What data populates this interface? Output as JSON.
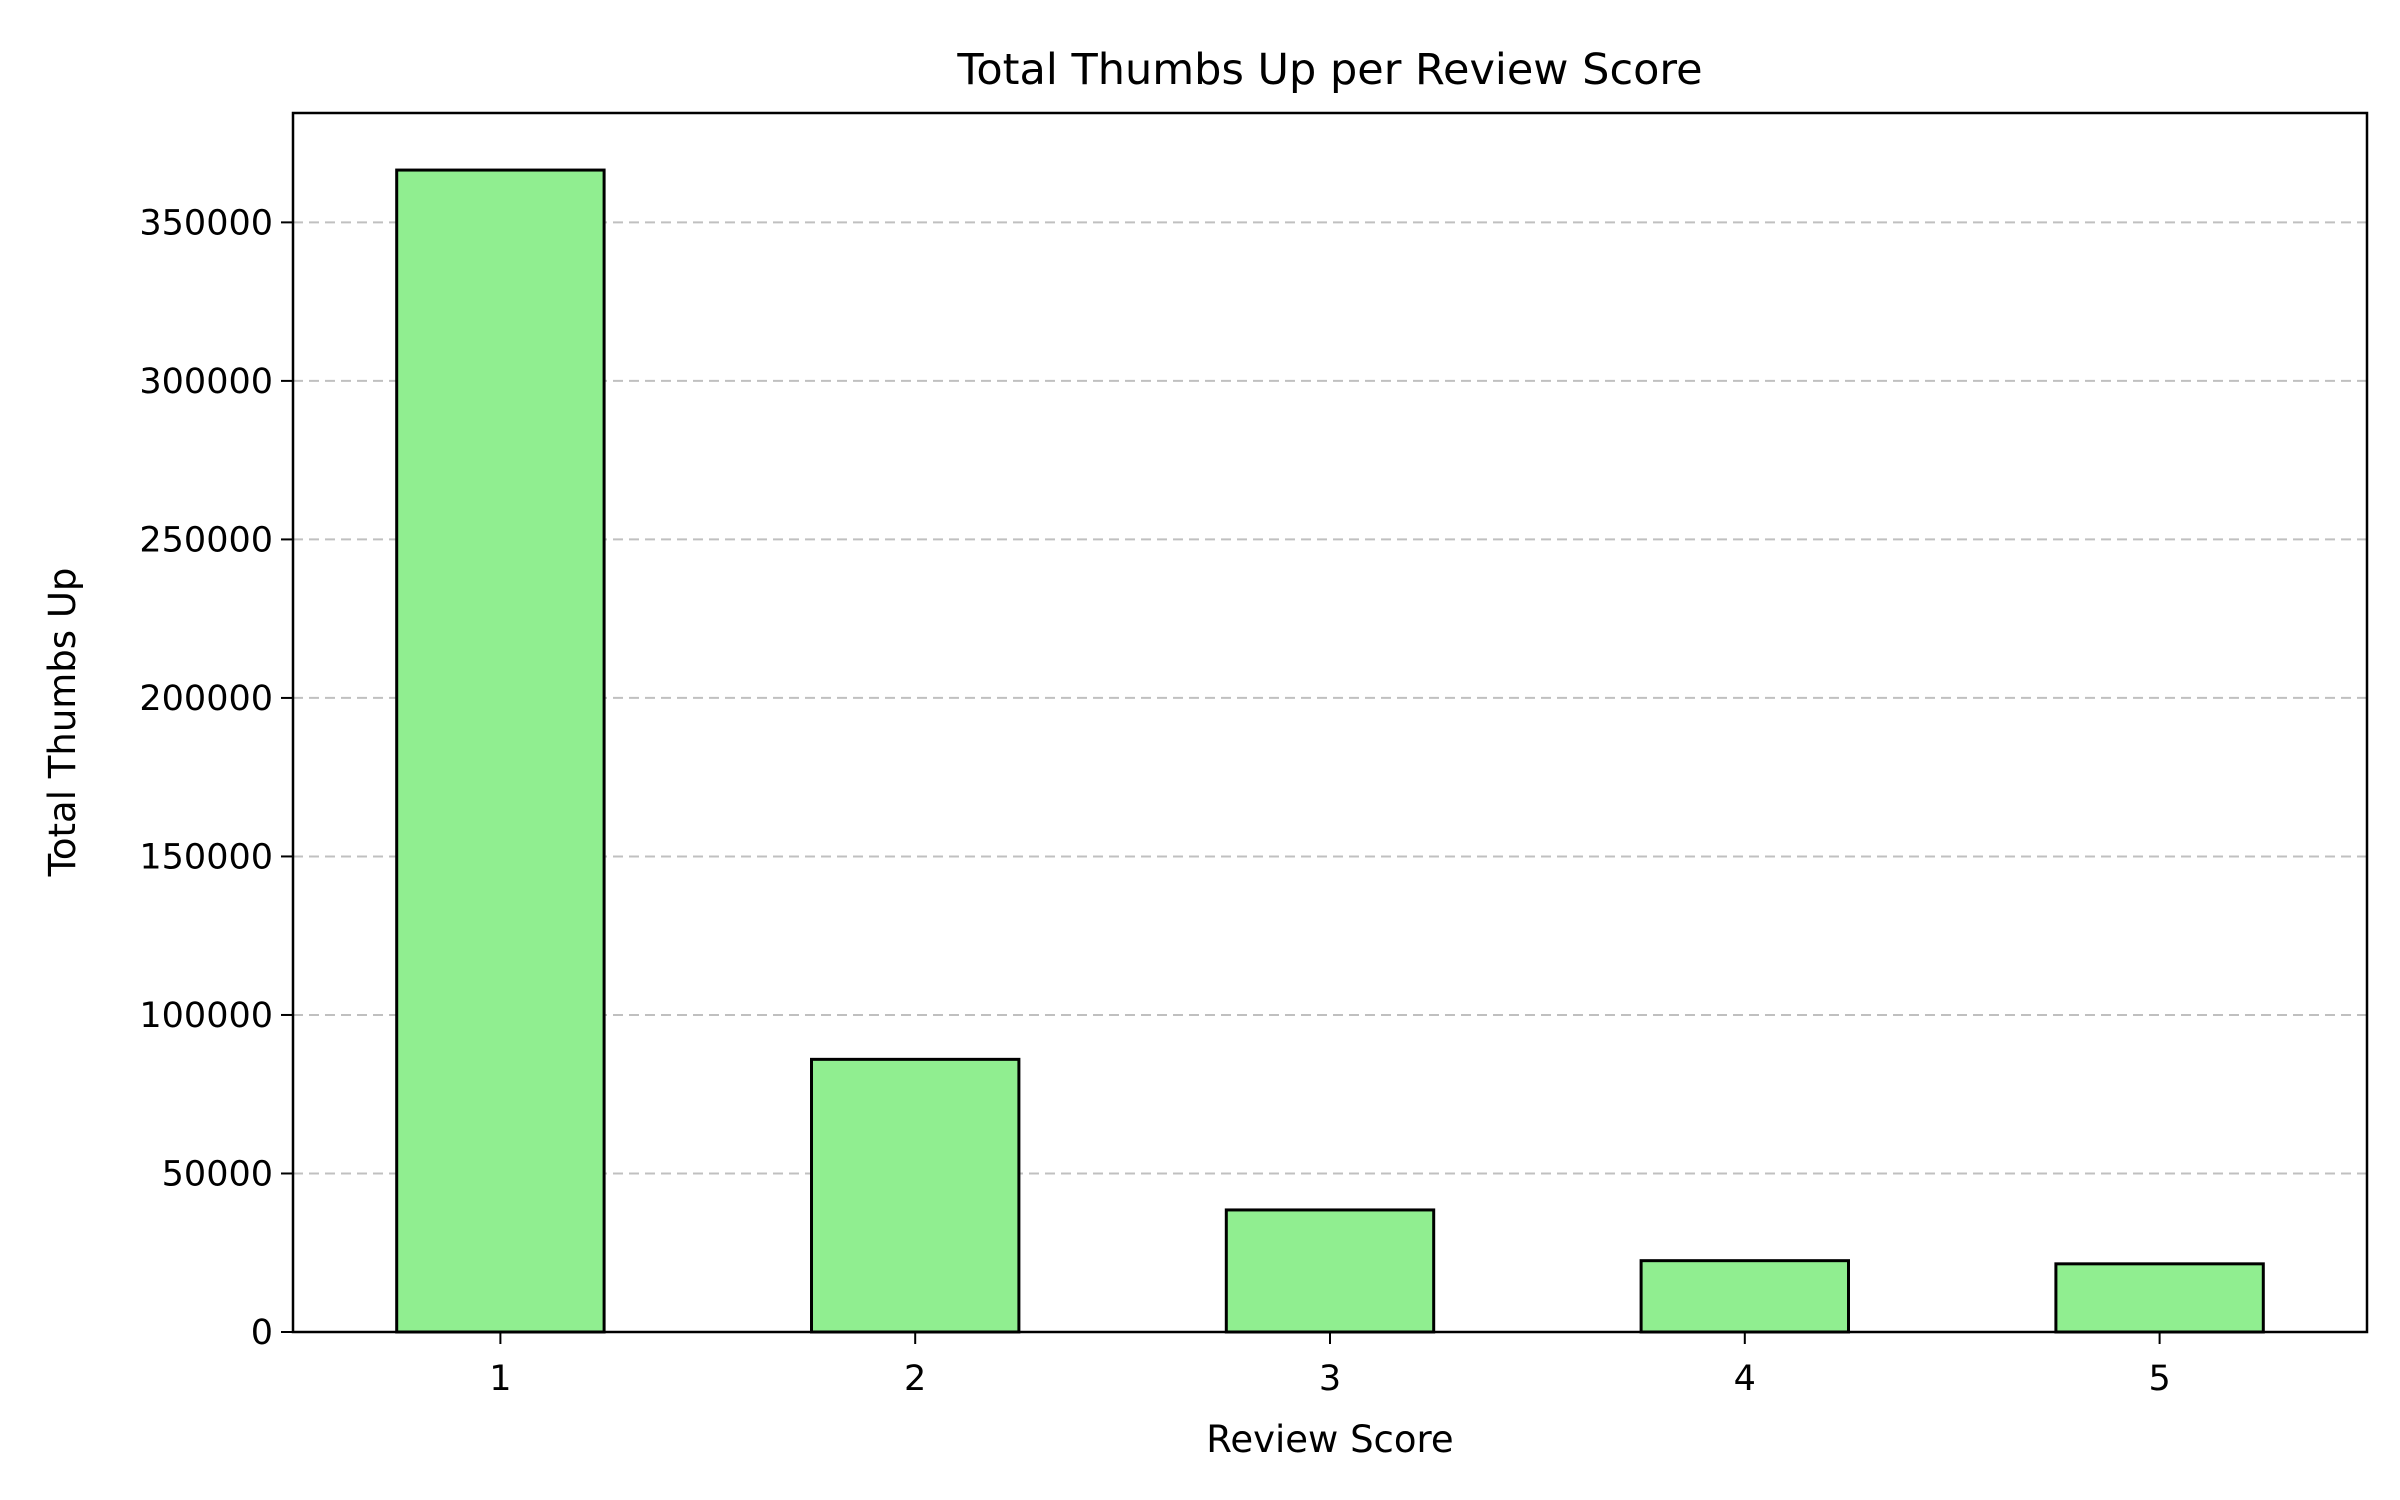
{
  "chart_data": {
    "type": "bar",
    "title": "Total Thumbs Up per Review Score",
    "xlabel": "Review Score",
    "ylabel": "Total Thumbs Up",
    "categories": [
      "1",
      "2",
      "3",
      "4",
      "5"
    ],
    "values": [
      366500,
      86000,
      38500,
      22500,
      21500
    ],
    "ylim": [
      0,
      384500
    ],
    "yticks": [
      0,
      50000,
      100000,
      150000,
      200000,
      250000,
      300000,
      350000
    ],
    "grid": "y-dashed",
    "legend": "none",
    "colors": {
      "bar_fill": "#90ee90",
      "bar_edge": "#000000",
      "grid": "#c0c0c0"
    }
  }
}
